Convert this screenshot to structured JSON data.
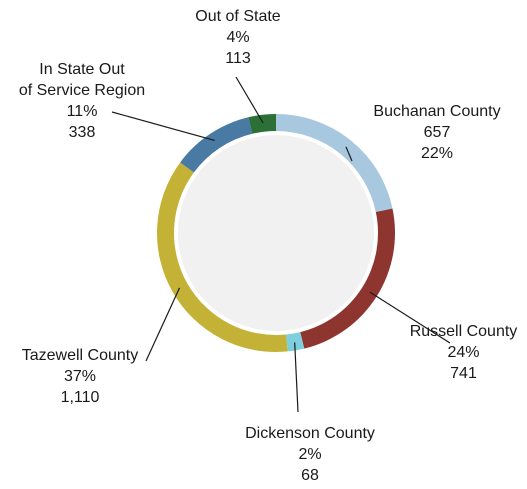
{
  "chart_data": {
    "type": "pie",
    "variant": "donut",
    "slices": [
      {
        "name": "Buchanan County",
        "value": 657,
        "percent": "22%",
        "count": "657",
        "color": "#a8c8e0"
      },
      {
        "name": "Russell County",
        "value": 741,
        "percent": "24%",
        "count": "741",
        "color": "#8f3530"
      },
      {
        "name": "Dickenson County",
        "value": 68,
        "percent": "2%",
        "count": "68",
        "color": "#7ecfde"
      },
      {
        "name": "Tazewell County",
        "value": 1110,
        "percent": "37%",
        "count": "1,110",
        "color": "#c4b236"
      },
      {
        "name": "In State Out of Service Region",
        "value": 338,
        "percent": "11%",
        "count": "338",
        "color": "#497aa3"
      },
      {
        "name": "Out of State",
        "value": 113,
        "percent": "4%",
        "count": "113",
        "color": "#2d7037"
      }
    ]
  },
  "colors": {
    "center_fill": "#f1f1f2",
    "leader_line": "#1a1a1a"
  }
}
